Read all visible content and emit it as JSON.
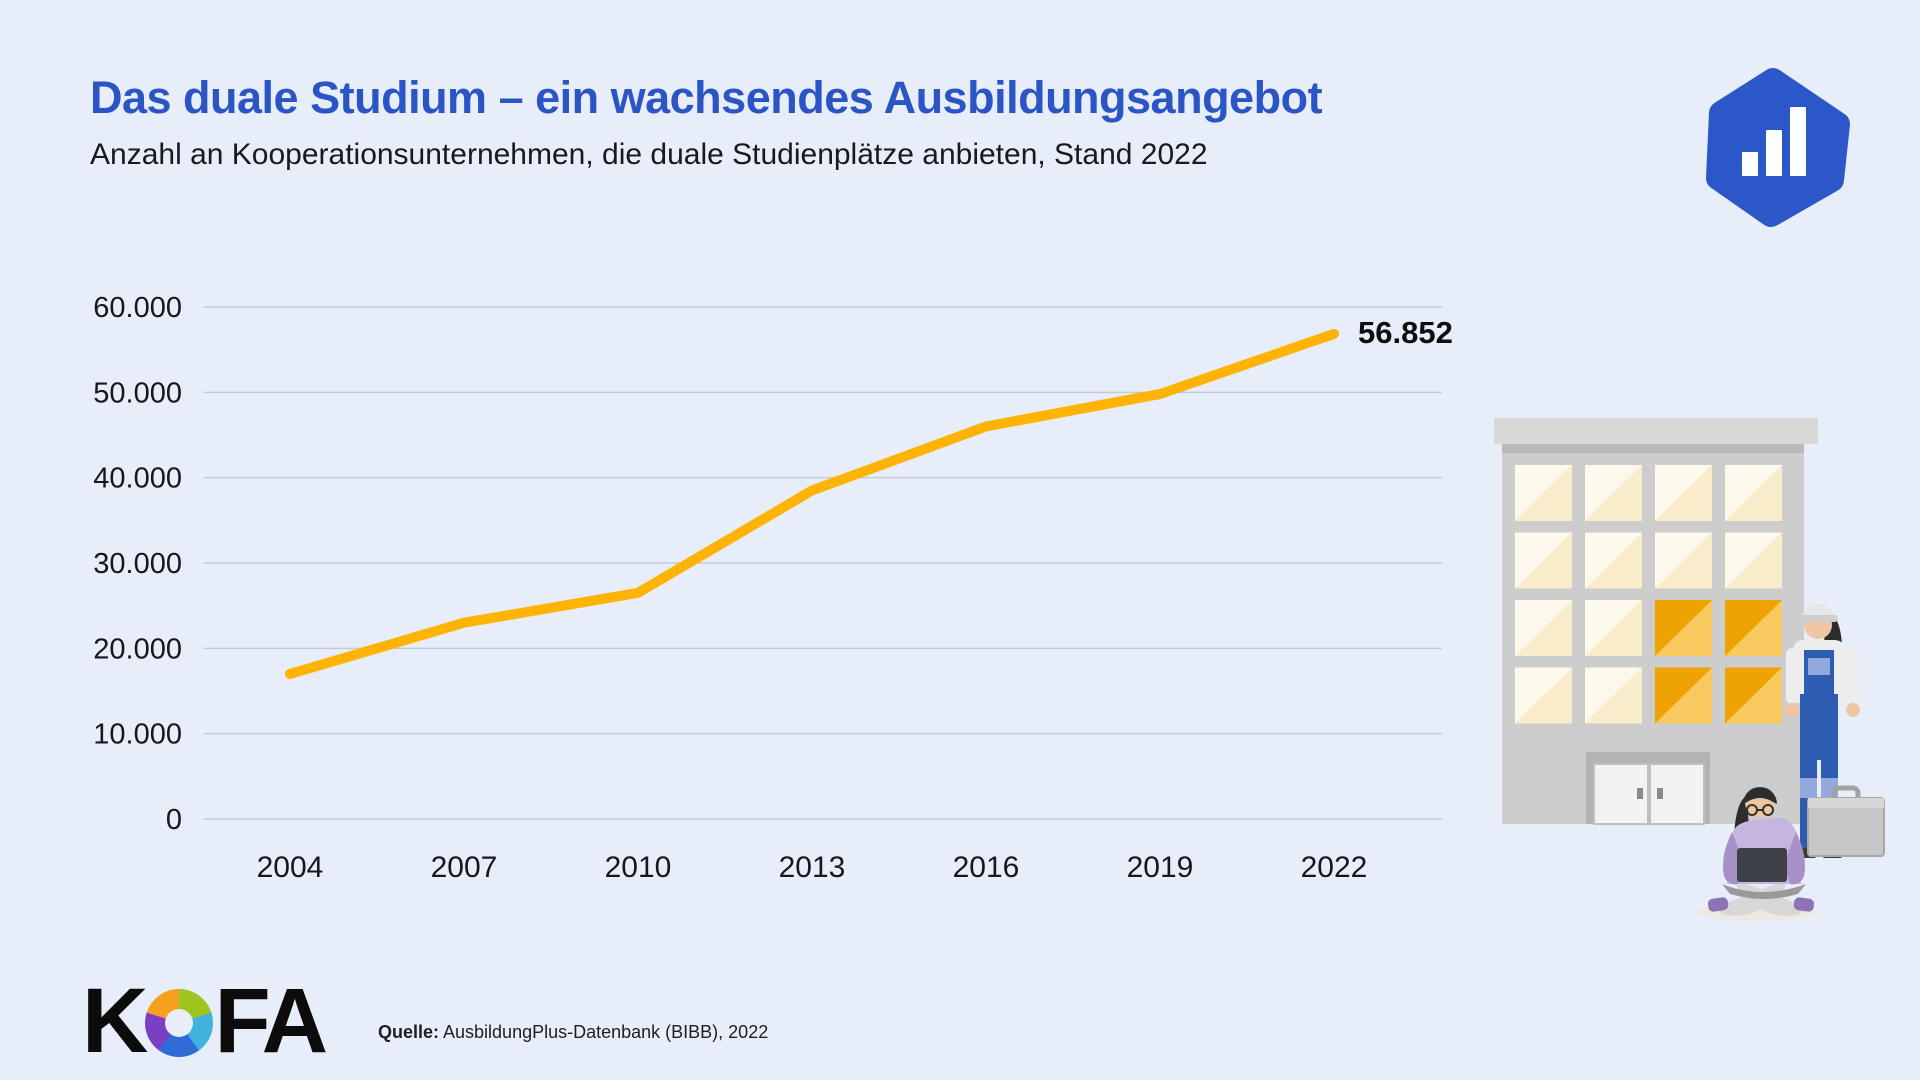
{
  "page": {
    "background_color": "#e8eef9"
  },
  "header": {
    "title": "Das duale Studium – ein wachsendes Ausbildungsangebot",
    "subtitle": "Anzahl an Kooperationsunternehmen, die duale Studienplätze anbieten, Stand 2022",
    "title_color": "#2b55c5"
  },
  "brand_mark": {
    "shape": "pentagon-blob-with-bar-chart",
    "color": "#2b57c8",
    "bar_color": "#ffffff"
  },
  "chart_data": {
    "type": "line",
    "x": [
      "2004",
      "2007",
      "2010",
      "2013",
      "2016",
      "2019",
      "2022"
    ],
    "values": [
      17000,
      23000,
      26500,
      38500,
      46000,
      49800,
      56852
    ],
    "end_label": "56.852",
    "title": "Das duale Studium – ein wachsendes Ausbildungsangebot",
    "subtitle": "Anzahl an Kooperationsunternehmen, die duale Studienplätze anbieten, Stand 2022",
    "xlabel": "",
    "ylabel": "",
    "ylim": [
      0,
      60000
    ],
    "ytick_labels": [
      "0",
      "10.000",
      "20.000",
      "30.000",
      "40.000",
      "50.000",
      "60.000"
    ],
    "grid": true,
    "legend": false,
    "line_color": "#ffb405",
    "gridline_color": "#c3c9d6",
    "label_color": "#15171a"
  },
  "footer": {
    "logo_text_k": "K",
    "logo_text_fa": "FA",
    "source_prefix": "Quelle:",
    "source_text": " AusbildungPlus-Datenbank (BIBB), 2022"
  },
  "illustration": {
    "orange_cells": [
      [
        2,
        2
      ],
      [
        2,
        3
      ],
      [
        3,
        2
      ],
      [
        3,
        3
      ]
    ],
    "colors": {
      "facade": "#cdcdcd",
      "roof": "#d8d8d8",
      "roof_shadow": "#b9b9b9",
      "window_light": "#fdf8ec",
      "window_cream": "#f8ecca",
      "window_orange_dark": "#efa303",
      "window_orange_light": "#f7c95f",
      "door_frame": "#b3b3b3",
      "door": "#f2f2f2",
      "overalls_blue": "#2e5cb0",
      "overalls_band": "#93a9dd",
      "shirt": "#ededed",
      "skin": "#eec6a2",
      "hair": "#2d2d2d",
      "hat": "#e6e6e6",
      "briefcase": "#c7c7c7",
      "sweater": "#c6b6df",
      "sweater_arm": "#a78fc7",
      "pants": "#d7d7d7",
      "shoe_purple": "#8f74b5",
      "laptop": "#3e4147",
      "ground_shadow": "#ece9e2"
    }
  }
}
